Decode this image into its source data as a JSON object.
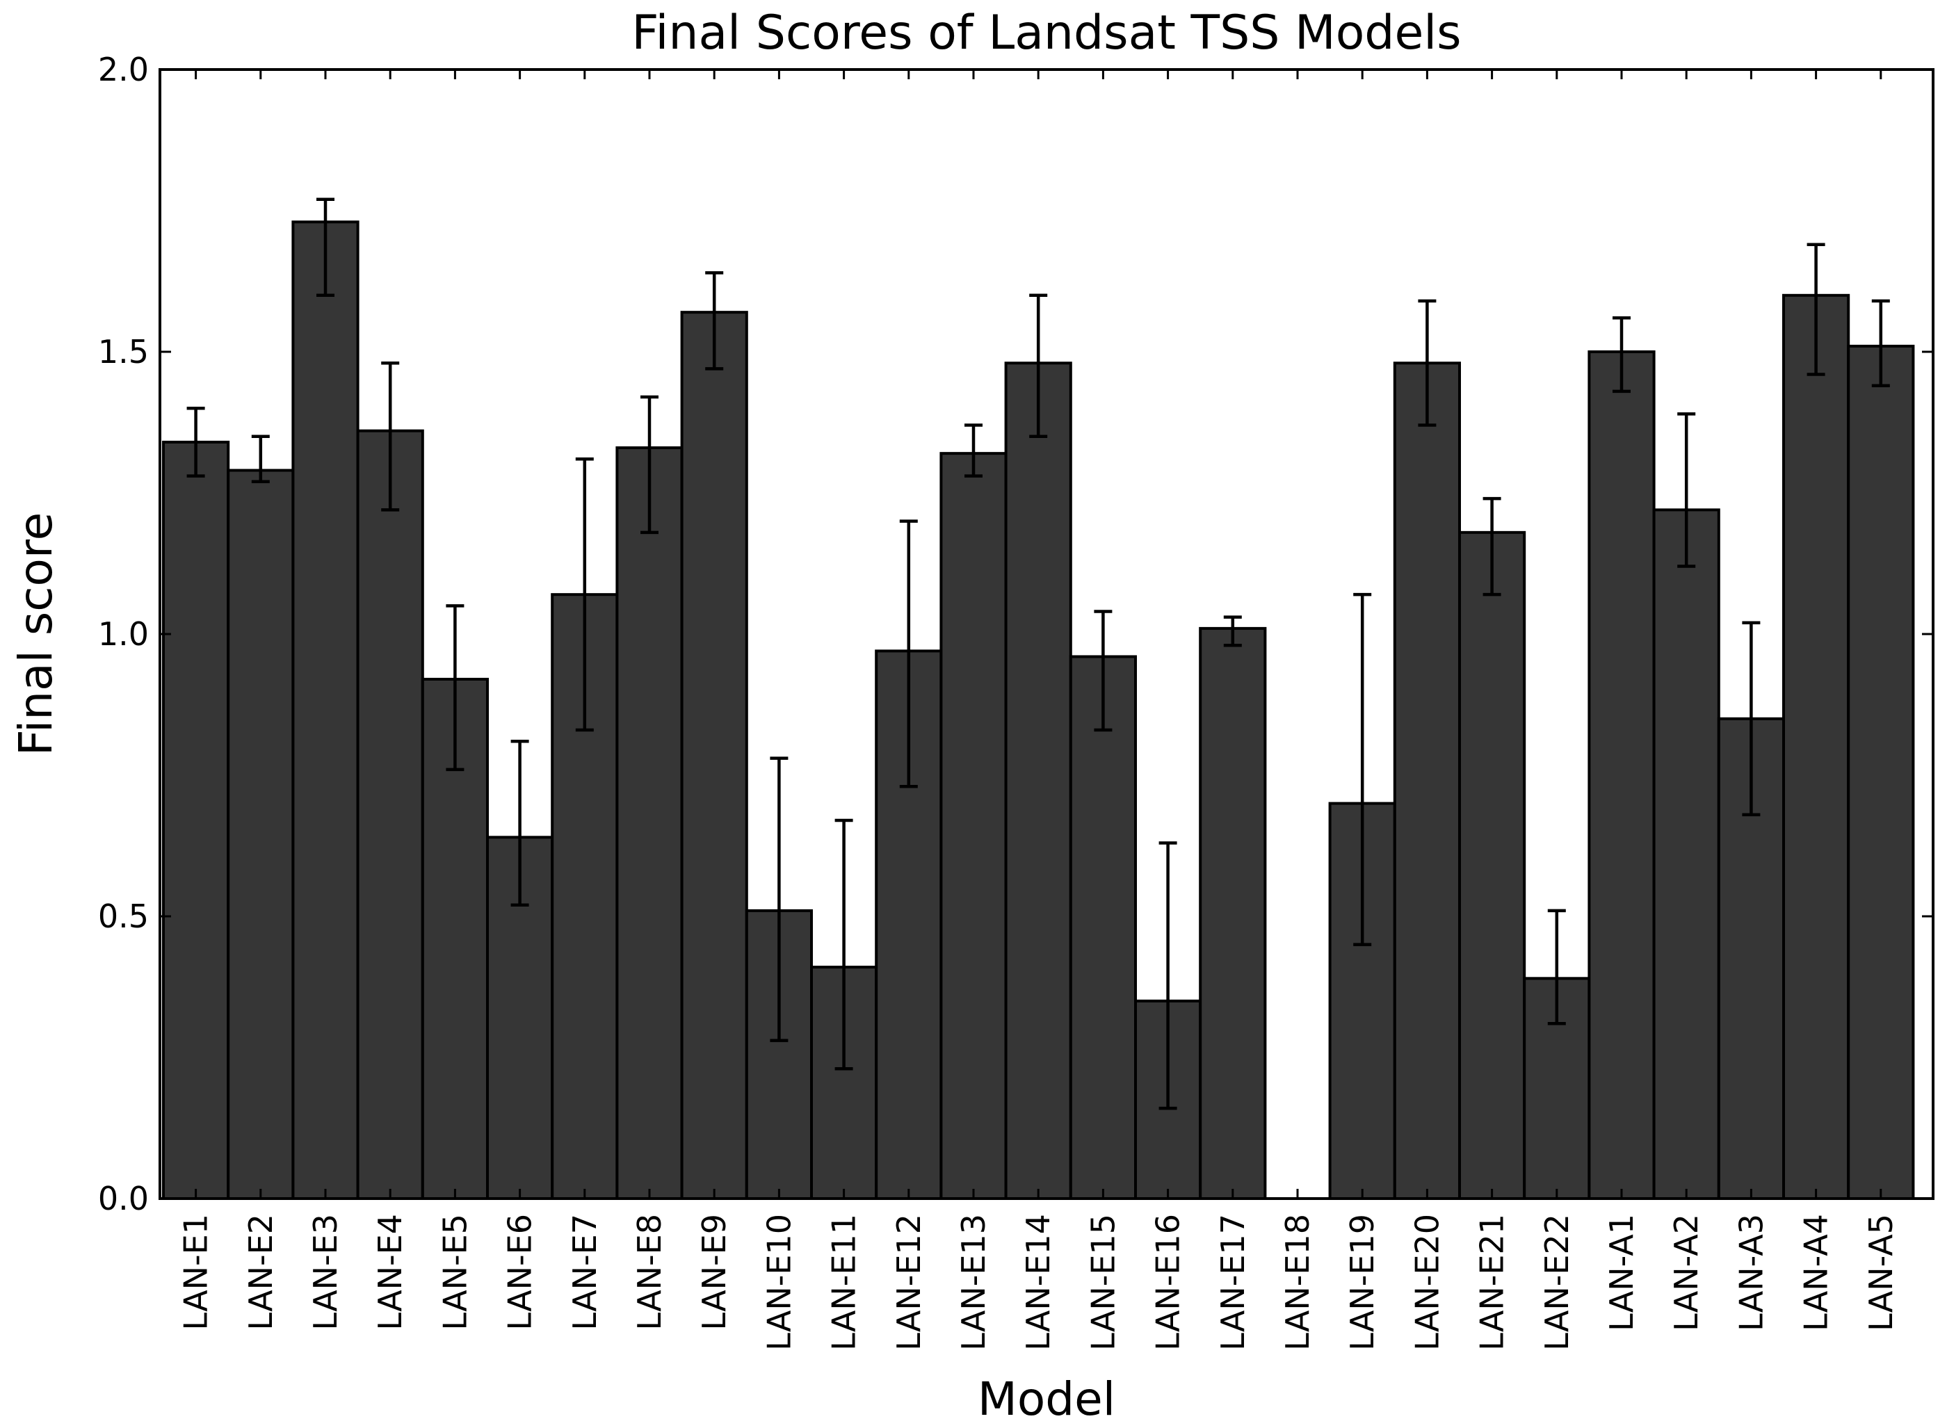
{
  "chart_data": {
    "type": "bar",
    "title": "Final Scores of Landsat TSS Models",
    "xlabel": "Model",
    "ylabel": "Final score",
    "ylim": [
      0,
      2.0
    ],
    "yticks": [
      "0.0",
      "0.5",
      "1.0",
      "1.5",
      "2.0"
    ],
    "grid": false,
    "categories": [
      "LAN-E1",
      "LAN-E2",
      "LAN-E3",
      "LAN-E4",
      "LAN-E5",
      "LAN-E6",
      "LAN-E7",
      "LAN-E8",
      "LAN-E9",
      "LAN-E10",
      "LAN-E11",
      "LAN-E12",
      "LAN-E13",
      "LAN-E14",
      "LAN-E15",
      "LAN-E16",
      "LAN-E17",
      "LAN-E18",
      "LAN-E19",
      "LAN-E20",
      "LAN-E21",
      "LAN-E22",
      "LAN-A1",
      "LAN-A2",
      "LAN-A3",
      "LAN-A4",
      "LAN-A5"
    ],
    "values": [
      1.34,
      1.29,
      1.73,
      1.36,
      0.92,
      0.64,
      1.07,
      1.33,
      1.57,
      0.51,
      0.41,
      0.97,
      1.32,
      1.48,
      0.96,
      0.35,
      1.01,
      0.0,
      0.7,
      1.48,
      1.18,
      0.39,
      1.5,
      1.22,
      0.85,
      1.6,
      1.51
    ],
    "error_low": [
      1.28,
      1.27,
      1.6,
      1.22,
      0.76,
      0.52,
      0.83,
      1.18,
      1.47,
      0.28,
      0.23,
      0.73,
      1.28,
      1.35,
      0.83,
      0.16,
      0.98,
      null,
      0.45,
      1.37,
      1.07,
      0.31,
      1.43,
      1.12,
      0.68,
      1.46,
      1.44
    ],
    "error_high": [
      1.4,
      1.35,
      1.77,
      1.48,
      1.05,
      0.81,
      1.31,
      1.42,
      1.64,
      0.78,
      0.67,
      1.2,
      1.37,
      1.6,
      1.04,
      0.63,
      1.03,
      null,
      1.07,
      1.59,
      1.24,
      0.51,
      1.56,
      1.39,
      1.02,
      1.69,
      1.59
    ],
    "bar_color": "#363636"
  }
}
